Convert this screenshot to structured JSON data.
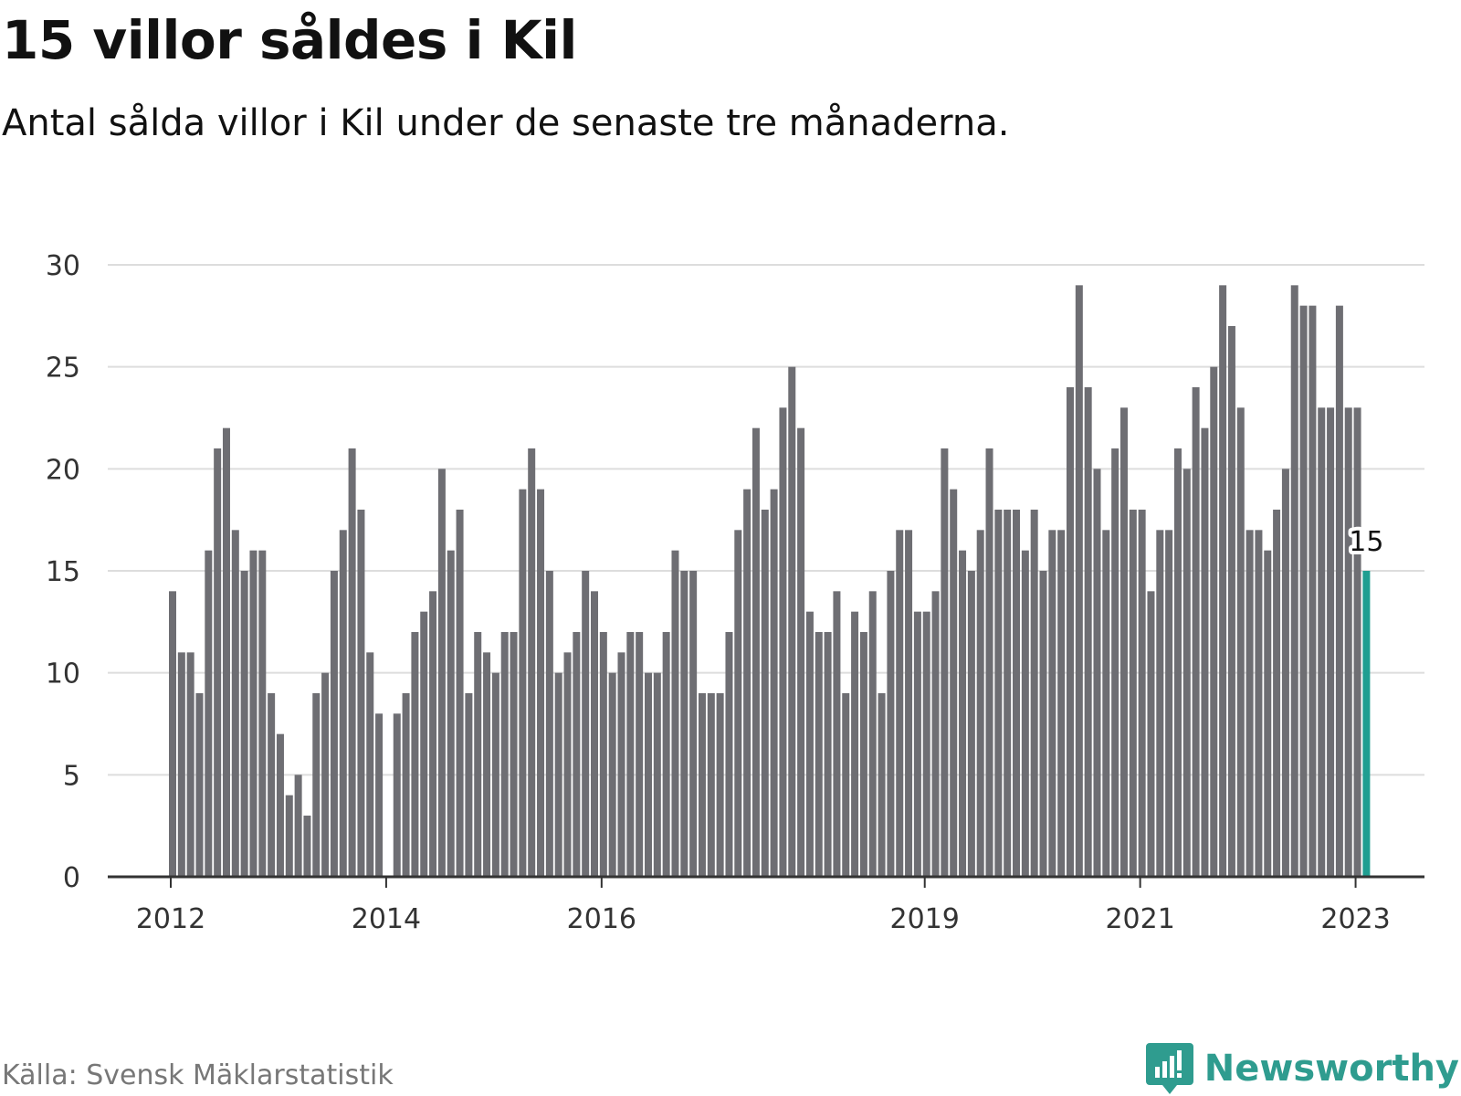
{
  "header": {
    "title": "15 villor såldes i Kil",
    "subtitle": "Antal sålda villor i Kil under de senaste tre månaderna."
  },
  "footer": {
    "source": "Källa: Svensk Mäklarstatistik",
    "brand": "Newsworthy",
    "brand_icon": "bar-chart-speech-bubble-icon"
  },
  "colors": {
    "bar": "#6e6e73",
    "highlight": "#1f9e91",
    "grid": "#dddddd",
    "axis": "#333333"
  },
  "chart_data": {
    "type": "bar",
    "title": "15 villor såldes i Kil",
    "subtitle": "Antal sålda villor i Kil under de senaste tre månaderna.",
    "xlabel": "",
    "ylabel": "",
    "ylim": [
      0,
      30
    ],
    "yticks": [
      0,
      5,
      10,
      15,
      20,
      25,
      30
    ],
    "grid": true,
    "x_start": "2012-01",
    "x_ticks": [
      {
        "label": "2012",
        "month": "2012-01"
      },
      {
        "label": "2014",
        "month": "2014-01"
      },
      {
        "label": "2016",
        "month": "2016-01"
      },
      {
        "label": "2019",
        "month": "2019-01"
      },
      {
        "label": "2021",
        "month": "2021-01"
      },
      {
        "label": "2023",
        "month": "2023-01"
      }
    ],
    "values": [
      14,
      11,
      11,
      9,
      16,
      21,
      22,
      17,
      15,
      16,
      16,
      9,
      7,
      4,
      5,
      3,
      9,
      10,
      15,
      17,
      21,
      18,
      11,
      8,
      null,
      8,
      9,
      12,
      13,
      14,
      20,
      16,
      18,
      9,
      12,
      11,
      10,
      12,
      12,
      19,
      21,
      19,
      15,
      10,
      11,
      12,
      15,
      14,
      12,
      10,
      11,
      12,
      12,
      10,
      10,
      12,
      16,
      15,
      15,
      9,
      9,
      9,
      12,
      17,
      19,
      22,
      18,
      19,
      23,
      25,
      22,
      13,
      12,
      12,
      14,
      9,
      13,
      12,
      14,
      9,
      15,
      17,
      17,
      13,
      13,
      14,
      21,
      19,
      16,
      15,
      17,
      21,
      18,
      18,
      18,
      16,
      18,
      15,
      17,
      17,
      24,
      29,
      24,
      20,
      17,
      21,
      23,
      18,
      18,
      14,
      17,
      17,
      21,
      20,
      24,
      22,
      25,
      29,
      27,
      23,
      17,
      17,
      16,
      18,
      20,
      29,
      28,
      28,
      23,
      23,
      28,
      23,
      23,
      15
    ],
    "highlight": {
      "index": 133,
      "label": "15"
    }
  }
}
